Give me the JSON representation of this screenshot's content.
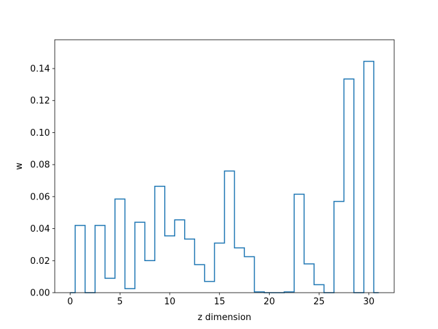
{
  "chart_data": {
    "type": "step",
    "xlabel": "z dimension",
    "ylabel": "w",
    "xlim": [
      -1.55,
      32.55
    ],
    "ylim": [
      0.0,
      0.158
    ],
    "xticks": [
      0,
      5,
      10,
      15,
      20,
      25,
      30
    ],
    "xtick_labels": [
      "0",
      "5",
      "10",
      "15",
      "20",
      "25",
      "30"
    ],
    "yticks": [
      0.0,
      0.02,
      0.04,
      0.06,
      0.08,
      0.1,
      0.12,
      0.14
    ],
    "ytick_labels": [
      "0.00",
      "0.02",
      "0.04",
      "0.06",
      "0.08",
      "0.10",
      "0.12",
      "0.14"
    ],
    "grid": false,
    "step_where": "mid",
    "line_color": "#1f77b4",
    "series": [
      {
        "x": [
          0,
          1,
          2,
          3,
          4,
          5,
          6,
          7,
          8,
          9,
          10,
          11,
          12,
          13,
          14,
          15,
          16,
          17,
          18,
          19,
          20,
          21,
          22,
          23,
          24,
          25,
          26,
          27,
          28,
          29,
          30,
          31
        ],
        "values": [
          0.0,
          0.042,
          0.0,
          0.042,
          0.009,
          0.0585,
          0.0025,
          0.044,
          0.02,
          0.0665,
          0.0355,
          0.0455,
          0.0335,
          0.0175,
          0.007,
          0.031,
          0.076,
          0.028,
          0.0225,
          0.0005,
          0.0,
          0.0,
          0.0005,
          0.0615,
          0.018,
          0.005,
          0.0,
          0.057,
          0.1335,
          0.0,
          0.1445,
          0.0
        ]
      }
    ]
  }
}
